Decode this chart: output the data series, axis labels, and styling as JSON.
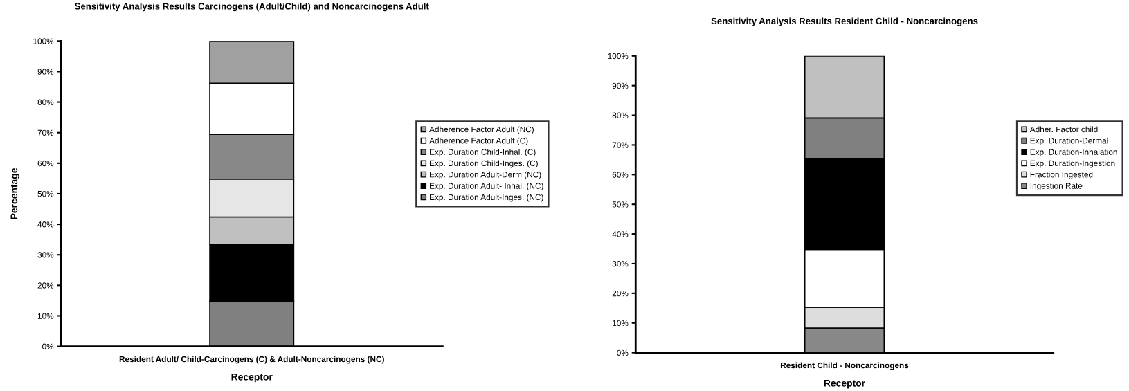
{
  "chart_data": [
    {
      "type": "bar",
      "stacked": true,
      "title": "Sensitivity Analysis Results Carcinogens (Adult/Child) and Noncarcinogens Adult",
      "xlabel": "Receptor",
      "ylabel": "Percentage",
      "categories": [
        "Resident Adult/ Child-Carcinogens (C) & Adult-Noncarcinogens (NC)"
      ],
      "ylim": [
        0,
        100
      ],
      "yticks": [
        {
          "value": 0,
          "label": "0%"
        },
        {
          "value": 10,
          "label": "10%"
        },
        {
          "value": 20,
          "label": "20%"
        },
        {
          "value": 30,
          "label": "30%"
        },
        {
          "value": 40,
          "label": "40%"
        },
        {
          "value": 50,
          "label": "50%"
        },
        {
          "value": 60,
          "label": "60%"
        },
        {
          "value": 70,
          "label": "70%"
        },
        {
          "value": 80,
          "label": "80%"
        },
        {
          "value": 90,
          "label": "90%"
        },
        {
          "value": 100,
          "label": "100%"
        }
      ],
      "legend": "right",
      "grid": false,
      "series": [
        {
          "name": "Exp. Duration Adult-Inges. (NC)",
          "color": "#808080",
          "values": [
            14.8
          ]
        },
        {
          "name": "Exp. Duration Adult- Inhal. (NC)",
          "color": "#000000",
          "values": [
            18.6
          ]
        },
        {
          "name": "Exp. Duration Adult-Derm (NC)",
          "color": "#c0c0c0",
          "values": [
            9.0
          ]
        },
        {
          "name": "Exp. Duration Child-Inges. (C)",
          "color": "#e6e6e6",
          "values": [
            12.4
          ]
        },
        {
          "name": "Exp. Duration Child-Inhal. (C)",
          "color": "#888888",
          "values": [
            14.7
          ]
        },
        {
          "name": "Adherence Factor Adult (C)",
          "color": "#ffffff",
          "values": [
            16.7
          ]
        },
        {
          "name": "Adherence Factor Adult (NC)",
          "color": "#a0a0a0",
          "values": [
            13.8
          ]
        }
      ]
    },
    {
      "type": "bar",
      "stacked": true,
      "title": "Sensitivity Analysis Results Resident Child - Noncarcinogens",
      "xlabel": "Receptor",
      "categories": [
        "Resident Child - Noncarcinogens"
      ],
      "ylim": [
        0,
        100
      ],
      "yticks": [
        {
          "value": 0,
          "label": "0%"
        },
        {
          "value": 10,
          "label": "10%"
        },
        {
          "value": 20,
          "label": "20%"
        },
        {
          "value": 30,
          "label": "30%"
        },
        {
          "value": 40,
          "label": "40%"
        },
        {
          "value": 50,
          "label": "50%"
        },
        {
          "value": 60,
          "label": "60%"
        },
        {
          "value": 70,
          "label": "70%"
        },
        {
          "value": 80,
          "label": "80%"
        },
        {
          "value": 90,
          "label": "90%"
        },
        {
          "value": 100,
          "label": "100%"
        }
      ],
      "legend": "right",
      "grid": false,
      "series": [
        {
          "name": "Ingestion Rate",
          "color": "#888888",
          "values": [
            8.3
          ]
        },
        {
          "name": "Fraction Ingested",
          "color": "#dddddd",
          "values": [
            7.0
          ]
        },
        {
          "name": "Exp. Duration-Ingestion",
          "color": "#ffffff",
          "values": [
            19.5
          ]
        },
        {
          "name": "Exp. Duration-Inhalation",
          "color": "#000000",
          "values": [
            30.5
          ]
        },
        {
          "name": "Exp. Duration-Dermal",
          "color": "#808080",
          "values": [
            13.8
          ]
        },
        {
          "name": "Adher. Factor child",
          "color": "#c0c0c0",
          "values": [
            20.9
          ]
        }
      ]
    }
  ]
}
